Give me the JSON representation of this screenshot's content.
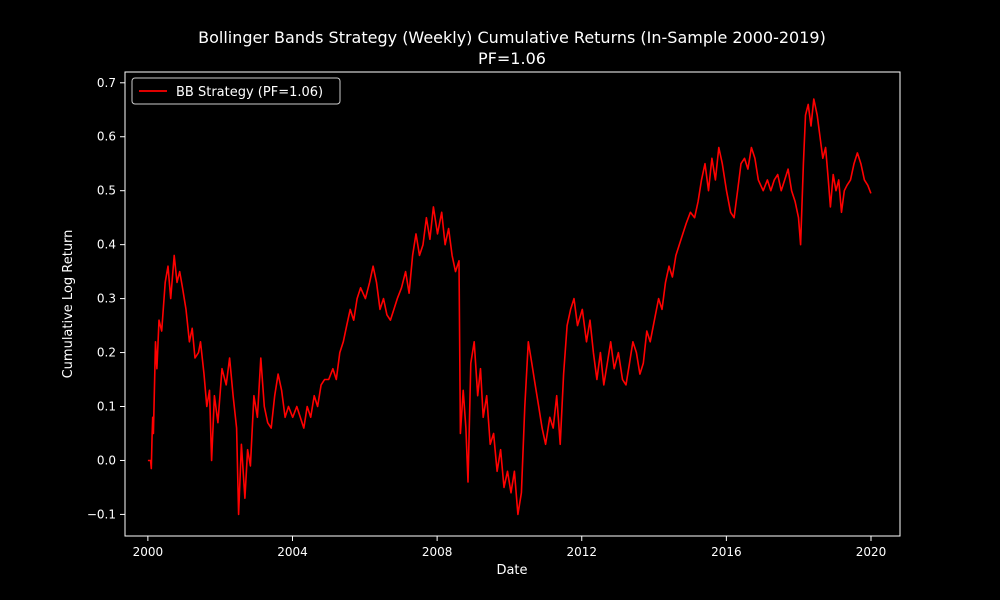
{
  "chart_data": {
    "type": "line",
    "title": "Bollinger Bands Strategy (Weekly) Cumulative Returns (In-Sample 2000-2019)",
    "subtitle": "PF=1.06",
    "xlabel": "Date",
    "ylabel": "Cumulative Log Return",
    "xlim": [
      "1999-05-15",
      "2020-10-20"
    ],
    "ylim": [
      -0.14,
      0.72
    ],
    "x_ticks": [
      "2000-01-01",
      "2004-01-01",
      "2008-01-01",
      "2012-01-01",
      "2016-01-01",
      "2020-01-01"
    ],
    "x_tick_labels": [
      "2000",
      "2004",
      "2008",
      "2012",
      "2016",
      "2020"
    ],
    "y_ticks": [
      -0.1,
      0.0,
      0.1,
      0.2,
      0.3,
      0.4,
      0.5,
      0.6,
      0.7
    ],
    "y_tick_labels": [
      "−0.1",
      "0.0",
      "0.1",
      "0.2",
      "0.3",
      "0.4",
      "0.5",
      "0.6",
      "0.7"
    ],
    "grid": false,
    "legend": {
      "position": "top-left"
    },
    "colors": {
      "background": "#000000",
      "axes": "#ffffff",
      "series": "#ff0000"
    },
    "series": [
      {
        "name": "BB Strategy (PF=1.06)",
        "color": "#ff0000",
        "points": [
          [
            "2000-01-01",
            0.0
          ],
          [
            "2000-01-29",
            0.0
          ],
          [
            "2000-02-05",
            -0.015
          ],
          [
            "2000-02-12",
            0.04
          ],
          [
            "2000-02-19",
            0.08
          ],
          [
            "2000-02-26",
            0.05
          ],
          [
            "2000-03-18",
            0.22
          ],
          [
            "2000-04-01",
            0.17
          ],
          [
            "2000-04-22",
            0.26
          ],
          [
            "2000-05-20",
            0.24
          ],
          [
            "2000-06-24",
            0.33
          ],
          [
            "2000-07-22",
            0.36
          ],
          [
            "2000-08-19",
            0.3
          ],
          [
            "2000-09-23",
            0.38
          ],
          [
            "2000-10-21",
            0.33
          ],
          [
            "2000-11-18",
            0.35
          ],
          [
            "2000-12-16",
            0.32
          ],
          [
            "2001-01-20",
            0.28
          ],
          [
            "2001-02-24",
            0.22
          ],
          [
            "2001-03-24",
            0.245
          ],
          [
            "2001-04-21",
            0.19
          ],
          [
            "2001-05-26",
            0.2
          ],
          [
            "2001-06-16",
            0.22
          ],
          [
            "2001-07-21",
            0.16
          ],
          [
            "2001-08-18",
            0.1
          ],
          [
            "2001-09-15",
            0.13
          ],
          [
            "2001-10-06",
            0.0
          ],
          [
            "2001-11-03",
            0.12
          ],
          [
            "2001-12-08",
            0.07
          ],
          [
            "2002-01-19",
            0.17
          ],
          [
            "2002-03-02",
            0.14
          ],
          [
            "2002-04-06",
            0.19
          ],
          [
            "2002-05-11",
            0.12
          ],
          [
            "2002-06-15",
            0.06
          ],
          [
            "2002-07-06",
            -0.1
          ],
          [
            "2002-08-03",
            0.03
          ],
          [
            "2002-09-07",
            -0.07
          ],
          [
            "2002-10-05",
            0.02
          ],
          [
            "2002-11-02",
            -0.01
          ],
          [
            "2002-12-07",
            0.12
          ],
          [
            "2003-01-11",
            0.08
          ],
          [
            "2003-02-15",
            0.19
          ],
          [
            "2003-03-22",
            0.1
          ],
          [
            "2003-04-26",
            0.07
          ],
          [
            "2003-05-31",
            0.06
          ],
          [
            "2003-07-05",
            0.12
          ],
          [
            "2003-08-09",
            0.16
          ],
          [
            "2003-09-13",
            0.13
          ],
          [
            "2003-10-18",
            0.08
          ],
          [
            "2003-11-22",
            0.1
          ],
          [
            "2004-01-03",
            0.08
          ],
          [
            "2004-02-14",
            0.1
          ],
          [
            "2004-03-20",
            0.08
          ],
          [
            "2004-04-24",
            0.06
          ],
          [
            "2004-05-29",
            0.1
          ],
          [
            "2004-07-03",
            0.08
          ],
          [
            "2004-08-07",
            0.12
          ],
          [
            "2004-09-11",
            0.1
          ],
          [
            "2004-10-16",
            0.14
          ],
          [
            "2004-11-20",
            0.15
          ],
          [
            "2005-01-01",
            0.15
          ],
          [
            "2005-02-12",
            0.17
          ],
          [
            "2005-03-19",
            0.15
          ],
          [
            "2005-04-23",
            0.2
          ],
          [
            "2005-05-28",
            0.22
          ],
          [
            "2005-07-02",
            0.25
          ],
          [
            "2005-08-06",
            0.28
          ],
          [
            "2005-09-10",
            0.26
          ],
          [
            "2005-10-15",
            0.3
          ],
          [
            "2005-11-19",
            0.32
          ],
          [
            "2006-01-07",
            0.3
          ],
          [
            "2006-02-18",
            0.33
          ],
          [
            "2006-03-25",
            0.36
          ],
          [
            "2006-04-29",
            0.33
          ],
          [
            "2006-06-03",
            0.28
          ],
          [
            "2006-07-08",
            0.3
          ],
          [
            "2006-08-12",
            0.27
          ],
          [
            "2006-09-16",
            0.26
          ],
          [
            "2006-10-21",
            0.28
          ],
          [
            "2006-11-25",
            0.3
          ],
          [
            "2007-01-06",
            0.32
          ],
          [
            "2007-02-17",
            0.35
          ],
          [
            "2007-03-24",
            0.31
          ],
          [
            "2007-04-28",
            0.38
          ],
          [
            "2007-06-02",
            0.42
          ],
          [
            "2007-07-07",
            0.38
          ],
          [
            "2007-08-11",
            0.4
          ],
          [
            "2007-09-15",
            0.45
          ],
          [
            "2007-10-20",
            0.41
          ],
          [
            "2007-11-24",
            0.47
          ],
          [
            "2008-01-05",
            0.42
          ],
          [
            "2008-02-16",
            0.46
          ],
          [
            "2008-03-22",
            0.4
          ],
          [
            "2008-04-26",
            0.43
          ],
          [
            "2008-05-31",
            0.38
          ],
          [
            "2008-07-05",
            0.35
          ],
          [
            "2008-08-09",
            0.37
          ],
          [
            "2008-08-23",
            0.05
          ],
          [
            "2008-09-20",
            0.13
          ],
          [
            "2008-10-18",
            0.06
          ],
          [
            "2008-11-08",
            -0.04
          ],
          [
            "2008-12-06",
            0.18
          ],
          [
            "2009-01-10",
            0.22
          ],
          [
            "2009-02-14",
            0.12
          ],
          [
            "2009-03-14",
            0.17
          ],
          [
            "2009-04-11",
            0.08
          ],
          [
            "2009-05-16",
            0.12
          ],
          [
            "2009-06-20",
            0.03
          ],
          [
            "2009-07-25",
            0.05
          ],
          [
            "2009-08-29",
            -0.02
          ],
          [
            "2009-10-03",
            0.02
          ],
          [
            "2009-11-07",
            -0.05
          ],
          [
            "2009-12-12",
            -0.02
          ],
          [
            "2010-01-16",
            -0.06
          ],
          [
            "2010-02-20",
            -0.02
          ],
          [
            "2010-03-27",
            -0.1
          ],
          [
            "2010-05-01",
            -0.06
          ],
          [
            "2010-06-05",
            0.1
          ],
          [
            "2010-07-10",
            0.22
          ],
          [
            "2010-08-14",
            0.18
          ],
          [
            "2010-09-18",
            0.14
          ],
          [
            "2010-10-23",
            0.1
          ],
          [
            "2010-11-27",
            0.06
          ],
          [
            "2011-01-01",
            0.03
          ],
          [
            "2011-02-12",
            0.08
          ],
          [
            "2011-03-19",
            0.06
          ],
          [
            "2011-04-23",
            0.12
          ],
          [
            "2011-05-28",
            0.03
          ],
          [
            "2011-07-02",
            0.16
          ],
          [
            "2011-08-06",
            0.25
          ],
          [
            "2011-09-10",
            0.28
          ],
          [
            "2011-10-15",
            0.3
          ],
          [
            "2011-11-19",
            0.25
          ],
          [
            "2012-01-07",
            0.28
          ],
          [
            "2012-02-18",
            0.22
          ],
          [
            "2012-03-24",
            0.26
          ],
          [
            "2012-04-28",
            0.2
          ],
          [
            "2012-06-02",
            0.15
          ],
          [
            "2012-07-07",
            0.2
          ],
          [
            "2012-08-11",
            0.14
          ],
          [
            "2012-09-15",
            0.18
          ],
          [
            "2012-10-20",
            0.22
          ],
          [
            "2012-11-24",
            0.17
          ],
          [
            "2013-01-05",
            0.2
          ],
          [
            "2013-02-16",
            0.15
          ],
          [
            "2013-03-23",
            0.14
          ],
          [
            "2013-04-27",
            0.18
          ],
          [
            "2013-06-01",
            0.22
          ],
          [
            "2013-07-06",
            0.2
          ],
          [
            "2013-08-10",
            0.16
          ],
          [
            "2013-09-14",
            0.18
          ],
          [
            "2013-10-19",
            0.24
          ],
          [
            "2013-11-23",
            0.22
          ],
          [
            "2014-01-04",
            0.26
          ],
          [
            "2014-02-15",
            0.3
          ],
          [
            "2014-03-22",
            0.28
          ],
          [
            "2014-04-26",
            0.33
          ],
          [
            "2014-05-31",
            0.36
          ],
          [
            "2014-07-05",
            0.34
          ],
          [
            "2014-08-09",
            0.38
          ],
          [
            "2014-09-13",
            0.4
          ],
          [
            "2014-10-18",
            0.42
          ],
          [
            "2014-11-22",
            0.44
          ],
          [
            "2015-01-03",
            0.46
          ],
          [
            "2015-02-14",
            0.45
          ],
          [
            "2015-03-21",
            0.48
          ],
          [
            "2015-04-25",
            0.52
          ],
          [
            "2015-05-30",
            0.55
          ],
          [
            "2015-07-04",
            0.5
          ],
          [
            "2015-08-08",
            0.56
          ],
          [
            "2015-09-12",
            0.52
          ],
          [
            "2015-10-17",
            0.58
          ],
          [
            "2015-11-21",
            0.55
          ],
          [
            "2016-01-02",
            0.5
          ],
          [
            "2016-02-13",
            0.46
          ],
          [
            "2016-03-19",
            0.45
          ],
          [
            "2016-04-23",
            0.5
          ],
          [
            "2016-05-28",
            0.55
          ],
          [
            "2016-07-02",
            0.56
          ],
          [
            "2016-08-06",
            0.54
          ],
          [
            "2016-09-10",
            0.58
          ],
          [
            "2016-10-15",
            0.56
          ],
          [
            "2016-11-19",
            0.52
          ],
          [
            "2017-01-07",
            0.5
          ],
          [
            "2017-02-18",
            0.52
          ],
          [
            "2017-03-25",
            0.5
          ],
          [
            "2017-04-29",
            0.52
          ],
          [
            "2017-06-03",
            0.53
          ],
          [
            "2017-07-08",
            0.5
          ],
          [
            "2017-08-12",
            0.52
          ],
          [
            "2017-09-16",
            0.54
          ],
          [
            "2017-10-21",
            0.5
          ],
          [
            "2017-11-25",
            0.48
          ],
          [
            "2017-12-30",
            0.45
          ],
          [
            "2018-01-20",
            0.4
          ],
          [
            "2018-02-17",
            0.55
          ],
          [
            "2018-03-10",
            0.64
          ],
          [
            "2018-04-07",
            0.66
          ],
          [
            "2018-05-05",
            0.62
          ],
          [
            "2018-06-02",
            0.67
          ],
          [
            "2018-07-07",
            0.64
          ],
          [
            "2018-08-04",
            0.6
          ],
          [
            "2018-09-01",
            0.56
          ],
          [
            "2018-09-29",
            0.58
          ],
          [
            "2018-10-27",
            0.52
          ],
          [
            "2018-11-17",
            0.47
          ],
          [
            "2018-12-15",
            0.53
          ],
          [
            "2019-01-12",
            0.5
          ],
          [
            "2019-02-09",
            0.52
          ],
          [
            "2019-03-09",
            0.46
          ],
          [
            "2019-04-06",
            0.5
          ],
          [
            "2019-05-04",
            0.51
          ],
          [
            "2019-06-08",
            0.52
          ],
          [
            "2019-07-13",
            0.55
          ],
          [
            "2019-08-17",
            0.57
          ],
          [
            "2019-09-21",
            0.55
          ],
          [
            "2019-10-26",
            0.52
          ],
          [
            "2019-11-30",
            0.51
          ],
          [
            "2019-12-31",
            0.495
          ]
        ]
      }
    ]
  }
}
